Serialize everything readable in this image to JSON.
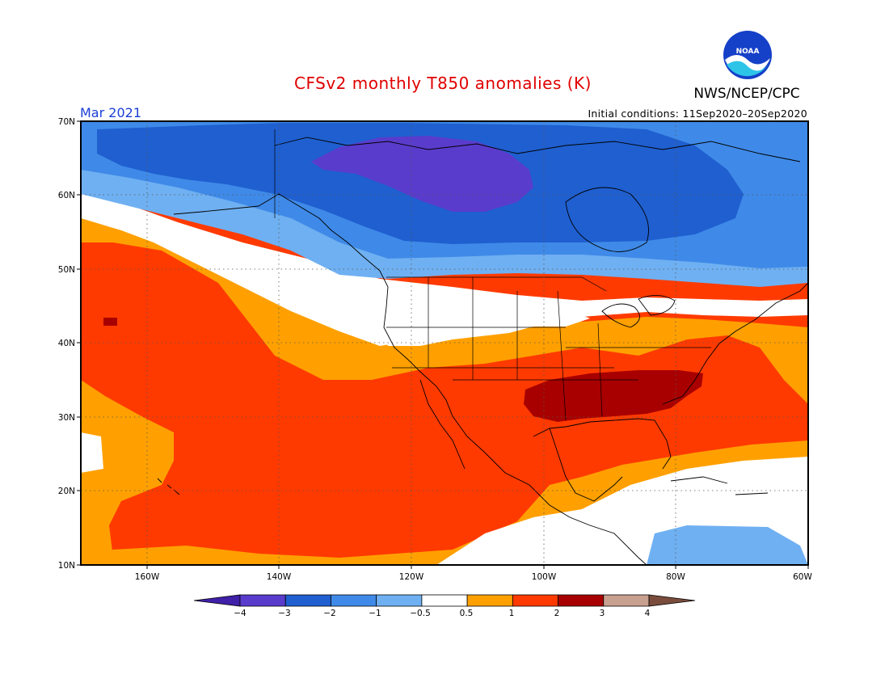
{
  "header": {
    "title": "CFSv2 monthly T850 anomalies (K)",
    "agency": "NWS/NCEP/CPC",
    "logo_text": "NOAA",
    "period": "Mar 2021",
    "initial_conditions": "Initial conditions: 11Sep2020–20Sep2020"
  },
  "map": {
    "lat_range": [
      10,
      70
    ],
    "lon_range": [
      -170,
      -60
    ],
    "lat_ticks": [
      "70N",
      "60N",
      "50N",
      "40N",
      "30N",
      "20N",
      "10N"
    ],
    "lon_ticks": [
      "160W",
      "140W",
      "120W",
      "100W",
      "80W",
      "60W"
    ],
    "gridlines": "dotted, every 10 degrees"
  },
  "colorbar": {
    "labels": [
      "−4",
      "−3",
      "−2",
      "−1",
      "−0.5",
      "0.5",
      "1",
      "2",
      "3",
      "4"
    ],
    "colors": [
      "#4020a8",
      "#5a3ccc",
      "#1f5fd0",
      "#3f8ae8",
      "#6fb0f2",
      "#ffffff",
      "#ffa000",
      "#ff3a00",
      "#a80000",
      "#c8a090",
      "#7a4c3c"
    ]
  },
  "colors": {
    "deep_blue": "#5a3ccc",
    "blue": "#1f5fd0",
    "mid_blue": "#3f8ae8",
    "light_blue": "#6fb0f2",
    "orange": "#ffa000",
    "red_orange": "#ff3a00",
    "dark_red": "#a80000"
  }
}
